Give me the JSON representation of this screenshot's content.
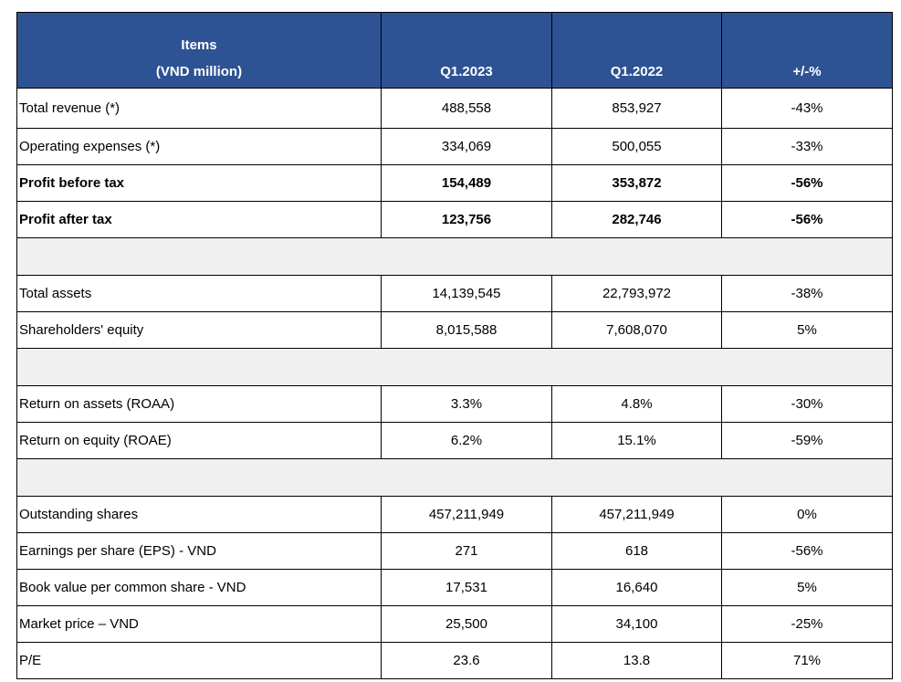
{
  "header": {
    "items_line1": "Items",
    "items_line2": "(VND million)",
    "col1": "Q1.2023",
    "col2": "Q1.2022",
    "col3": "+/-%"
  },
  "colors": {
    "header_bg": "#2e5394",
    "spacer_bg": "#f0f0f0"
  },
  "rows": [
    {
      "label": "Total revenue (*)",
      "q1_2023": "488,558",
      "q1_2022": "853,927",
      "change": "-43%"
    },
    {
      "label": "Operating expenses (*)",
      "q1_2023": "334,069",
      "q1_2022": "500,055",
      "change": "-33%"
    },
    {
      "label": "Profit before tax",
      "q1_2023": "154,489",
      "q1_2022": "353,872",
      "change": "-56%"
    },
    {
      "label": "Profit after tax",
      "q1_2023": "123,756",
      "q1_2022": "282,746",
      "change": "-56%"
    },
    {
      "label": "Total assets",
      "q1_2023": "14,139,545",
      "q1_2022": "22,793,972",
      "change": "-38%"
    },
    {
      "label": "Shareholders' equity",
      "q1_2023": "8,015,588",
      "q1_2022": "7,608,070",
      "change": "5%"
    },
    {
      "label": "Return on assets (ROAA)",
      "q1_2023": "3.3%",
      "q1_2022": "4.8%",
      "change": "-30%"
    },
    {
      "label": "Return on equity (ROAE)",
      "q1_2023": "6.2%",
      "q1_2022": "15.1%",
      "change": "-59%"
    },
    {
      "label": "Outstanding shares",
      "q1_2023": "457,211,949",
      "q1_2022": "457,211,949",
      "change": "0%"
    },
    {
      "label": "Earnings per share (EPS) - VND",
      "q1_2023": "271",
      "q1_2022": "618",
      "change": "-56%"
    },
    {
      "label": "Book value per common share - VND",
      "q1_2023": "17,531",
      "q1_2022": "16,640",
      "change": "5%"
    },
    {
      "label": "Market price – VND",
      "q1_2023": "25,500",
      "q1_2022": "34,100",
      "change": "-25%"
    },
    {
      "label": "P/E",
      "q1_2023": "23.6",
      "q1_2022": "13.8",
      "change": "71%"
    }
  ]
}
